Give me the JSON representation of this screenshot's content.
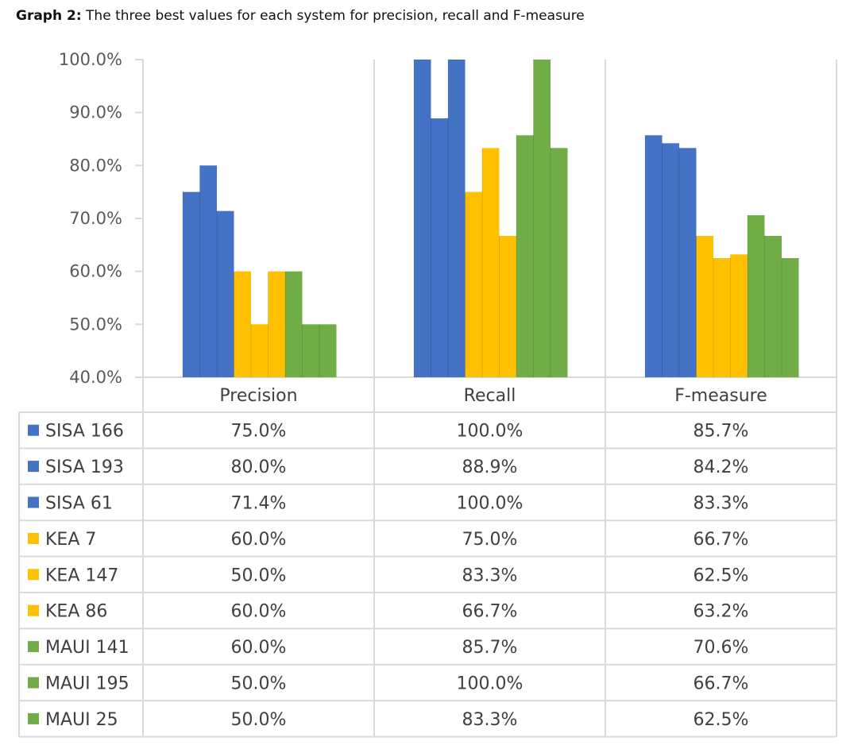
{
  "caption": {
    "label": "Graph 2:",
    "text": "The three best values for each system for precision, recall and F-measure"
  },
  "chart_data": {
    "type": "bar",
    "categories": [
      "Precision",
      "Recall",
      "F-measure"
    ],
    "series": [
      {
        "name": "SISA 166",
        "color": "#4472C4",
        "values": [
          75.0,
          100.0,
          85.7
        ],
        "labels": [
          "75.0%",
          "100.0%",
          "85.7%"
        ]
      },
      {
        "name": "SISA 193",
        "color": "#4472C4",
        "values": [
          80.0,
          88.9,
          84.2
        ],
        "labels": [
          "80.0%",
          "88.9%",
          "84.2%"
        ]
      },
      {
        "name": "SISA 61",
        "color": "#4472C4",
        "values": [
          71.4,
          100.0,
          83.3
        ],
        "labels": [
          "71.4%",
          "100.0%",
          "83.3%"
        ]
      },
      {
        "name": "KEA 7",
        "color": "#FFC000",
        "values": [
          60.0,
          75.0,
          66.7
        ],
        "labels": [
          "60.0%",
          "75.0%",
          "66.7%"
        ]
      },
      {
        "name": "KEA 147",
        "color": "#FFC000",
        "values": [
          50.0,
          83.3,
          62.5
        ],
        "labels": [
          "50.0%",
          "83.3%",
          "62.5%"
        ]
      },
      {
        "name": "KEA 86",
        "color": "#FFC000",
        "values": [
          60.0,
          66.7,
          63.2
        ],
        "labels": [
          "60.0%",
          "66.7%",
          "63.2%"
        ]
      },
      {
        "name": "MAUI 141",
        "color": "#70AD47",
        "values": [
          60.0,
          85.7,
          70.6
        ],
        "labels": [
          "60.0%",
          "85.7%",
          "70.6%"
        ]
      },
      {
        "name": "MAUI 195",
        "color": "#70AD47",
        "values": [
          50.0,
          100.0,
          66.7
        ],
        "labels": [
          "50.0%",
          "100.0%",
          "66.7%"
        ]
      },
      {
        "name": "MAUI 25",
        "color": "#70AD47",
        "values": [
          50.0,
          83.3,
          62.5
        ],
        "labels": [
          "50.0%",
          "83.3%",
          "62.5%"
        ]
      }
    ],
    "ylim": [
      40,
      100
    ],
    "yticks": [
      "40.0%",
      "50.0%",
      "60.0%",
      "70.0%",
      "80.0%",
      "90.0%",
      "100.0%"
    ],
    "title": "",
    "xlabel": "",
    "ylabel": "",
    "legend": "data table below chart",
    "gridlines": false
  }
}
